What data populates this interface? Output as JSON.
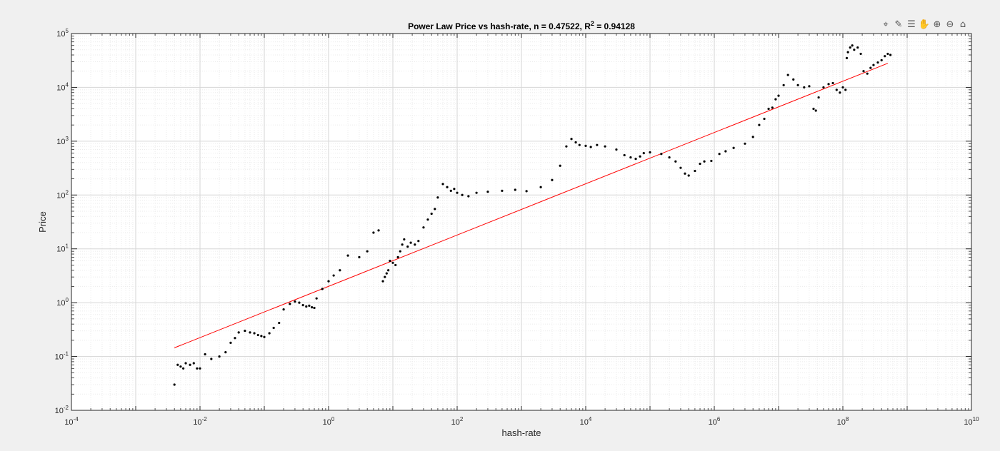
{
  "toolbar": {
    "icons": [
      "data-cursor-icon",
      "brush-icon",
      "legend-icon",
      "pan-hand-icon",
      "zoom-in-icon",
      "zoom-out-icon",
      "home-icon"
    ],
    "glyphs": [
      "⌖",
      "✎",
      "☰",
      "✋",
      "⊕",
      "⊖",
      "⌂"
    ]
  },
  "chart_data": {
    "type": "scatter",
    "title_text": "Power Law Price vs hash-rate, n = 0.47522, R",
    "title_sup": "2",
    "title_tail": " = 0.94128",
    "xlabel": "hash-rate",
    "ylabel": "Price",
    "xscale": "log",
    "yscale": "log",
    "xlim": [
      0.0001,
      10000000000
    ],
    "ylim": [
      0.01,
      100000
    ],
    "x_ticks": [
      {
        "base": "10",
        "exp": "-4"
      },
      {
        "base": "10",
        "exp": "-2"
      },
      {
        "base": "10",
        "exp": "0"
      },
      {
        "base": "10",
        "exp": "2"
      },
      {
        "base": "10",
        "exp": "4"
      },
      {
        "base": "10",
        "exp": "6"
      },
      {
        "base": "10",
        "exp": "8"
      },
      {
        "base": "10",
        "exp": "10"
      }
    ],
    "y_ticks": [
      {
        "base": "10",
        "exp": "-2"
      },
      {
        "base": "10",
        "exp": "-1"
      },
      {
        "base": "10",
        "exp": "0"
      },
      {
        "base": "10",
        "exp": "1"
      },
      {
        "base": "10",
        "exp": "2"
      },
      {
        "base": "10",
        "exp": "3"
      },
      {
        "base": "10",
        "exp": "4"
      },
      {
        "base": "10",
        "exp": "5"
      }
    ],
    "grid": true,
    "fit": {
      "name": "",
      "n": 0.47522,
      "r2": 0.94128,
      "x": [
        0.004,
        500000000
      ],
      "y": [
        0.145,
        28000
      ],
      "color": "#ff0000"
    },
    "points": [
      [
        0.004,
        0.03
      ],
      [
        0.0045,
        0.07
      ],
      [
        0.005,
        0.065
      ],
      [
        0.0055,
        0.06
      ],
      [
        0.006,
        0.075
      ],
      [
        0.007,
        0.07
      ],
      [
        0.008,
        0.075
      ],
      [
        0.009,
        0.06
      ],
      [
        0.01,
        0.06
      ],
      [
        0.012,
        0.11
      ],
      [
        0.015,
        0.09
      ],
      [
        0.02,
        0.1
      ],
      [
        0.025,
        0.12
      ],
      [
        0.03,
        0.18
      ],
      [
        0.035,
        0.22
      ],
      [
        0.04,
        0.28
      ],
      [
        0.05,
        0.3
      ],
      [
        0.06,
        0.28
      ],
      [
        0.07,
        0.27
      ],
      [
        0.08,
        0.25
      ],
      [
        0.09,
        0.24
      ],
      [
        0.1,
        0.23
      ],
      [
        0.12,
        0.27
      ],
      [
        0.14,
        0.34
      ],
      [
        0.17,
        0.42
      ],
      [
        0.2,
        0.75
      ],
      [
        0.25,
        0.95
      ],
      [
        0.3,
        1.05
      ],
      [
        0.35,
        1.0
      ],
      [
        0.4,
        0.9
      ],
      [
        0.45,
        0.85
      ],
      [
        0.5,
        0.88
      ],
      [
        0.55,
        0.82
      ],
      [
        0.6,
        0.8
      ],
      [
        0.65,
        1.2
      ],
      [
        0.8,
        1.8
      ],
      [
        1.0,
        2.5
      ],
      [
        1.2,
        3.2
      ],
      [
        1.5,
        4.0
      ],
      [
        2.0,
        7.5
      ],
      [
        3.0,
        7.0
      ],
      [
        4.0,
        9.0
      ],
      [
        5.0,
        20.0
      ],
      [
        6.0,
        22.0
      ],
      [
        7.0,
        2.5
      ],
      [
        7.5,
        3.0
      ],
      [
        8.0,
        3.5
      ],
      [
        8.5,
        4.0
      ],
      [
        9.0,
        6.0
      ],
      [
        10.0,
        5.5
      ],
      [
        11.0,
        5.0
      ],
      [
        12.0,
        7.0
      ],
      [
        13.0,
        9.0
      ],
      [
        14.0,
        12.0
      ],
      [
        15.0,
        15.0
      ],
      [
        17.0,
        11.0
      ],
      [
        19.0,
        13.0
      ],
      [
        22.0,
        12.0
      ],
      [
        25.0,
        14.0
      ],
      [
        30.0,
        25.0
      ],
      [
        35.0,
        35.0
      ],
      [
        40.0,
        45.0
      ],
      [
        45.0,
        55.0
      ],
      [
        50.0,
        90.0
      ],
      [
        60.0,
        160.0
      ],
      [
        70.0,
        140.0
      ],
      [
        80.0,
        120.0
      ],
      [
        90.0,
        130.0
      ],
      [
        100.0,
        110.0
      ],
      [
        120.0,
        100.0
      ],
      [
        150.0,
        95.0
      ],
      [
        200.0,
        110.0
      ],
      [
        300.0,
        115.0
      ],
      [
        500.0,
        120.0
      ],
      [
        800.0,
        125.0
      ],
      [
        1200.0,
        118.0
      ],
      [
        2000.0,
        140.0
      ],
      [
        3000.0,
        190.0
      ],
      [
        4000.0,
        350.0
      ],
      [
        5000.0,
        800.0
      ],
      [
        6000.0,
        1100.0
      ],
      [
        7000.0,
        950.0
      ],
      [
        8000.0,
        850.0
      ],
      [
        10000.0,
        820.0
      ],
      [
        12000.0,
        780.0
      ],
      [
        15000.0,
        850.0
      ],
      [
        20000.0,
        800.0
      ],
      [
        30000.0,
        700.0
      ],
      [
        40000.0,
        550.0
      ],
      [
        50000.0,
        500.0
      ],
      [
        60000.0,
        470.0
      ],
      [
        70000.0,
        520.0
      ],
      [
        80000.0,
        600.0
      ],
      [
        100000.0,
        620.0
      ],
      [
        150000.0,
        580.0
      ],
      [
        200000.0,
        500.0
      ],
      [
        250000.0,
        420.0
      ],
      [
        300000.0,
        320.0
      ],
      [
        350000.0,
        250.0
      ],
      [
        400000.0,
        230.0
      ],
      [
        500000.0,
        280.0
      ],
      [
        600000.0,
        380.0
      ],
      [
        700000.0,
        420.0
      ],
      [
        900000.0,
        430.0
      ],
      [
        1200000.0,
        580.0
      ],
      [
        1500000.0,
        650.0
      ],
      [
        2000000.0,
        750.0
      ],
      [
        3000000.0,
        900.0
      ],
      [
        4000000.0,
        1200.0
      ],
      [
        5000000.0,
        2000.0
      ],
      [
        6000000.0,
        2600.0
      ],
      [
        7000000.0,
        4000.0
      ],
      [
        8000000.0,
        4200.0
      ],
      [
        9000000.0,
        6000.0
      ],
      [
        10000000.0,
        7000.0
      ],
      [
        12000000.0,
        11000.0
      ],
      [
        14000000.0,
        17000.0
      ],
      [
        17000000.0,
        14000.0
      ],
      [
        20000000.0,
        11000.0
      ],
      [
        25000000.0,
        10000.0
      ],
      [
        30000000.0,
        10500.0
      ],
      [
        35000000.0,
        4000.0
      ],
      [
        38000000.0,
        3700.0
      ],
      [
        42000000.0,
        6500.0
      ],
      [
        50000000.0,
        10000.0
      ],
      [
        60000000.0,
        11500.0
      ],
      [
        70000000.0,
        12000.0
      ],
      [
        80000000.0,
        9000.0
      ],
      [
        90000000.0,
        8000.0
      ],
      [
        100000000.0,
        10000.0
      ],
      [
        110000000.0,
        9000.0
      ],
      [
        115000000.0,
        35000.0
      ],
      [
        120000000.0,
        45000.0
      ],
      [
        130000000.0,
        55000.0
      ],
      [
        140000000.0,
        60000.0
      ],
      [
        150000000.0,
        50000.0
      ],
      [
        170000000.0,
        55000.0
      ],
      [
        190000000.0,
        42000.0
      ],
      [
        210000000.0,
        20000.0
      ],
      [
        240000000.0,
        18000.0
      ],
      [
        270000000.0,
        23000.0
      ],
      [
        300000000.0,
        26000.0
      ],
      [
        350000000.0,
        29000.0
      ],
      [
        400000000.0,
        32000.0
      ],
      [
        450000000.0,
        38000.0
      ],
      [
        500000000.0,
        42000.0
      ],
      [
        550000000.0,
        40000.0
      ]
    ]
  }
}
